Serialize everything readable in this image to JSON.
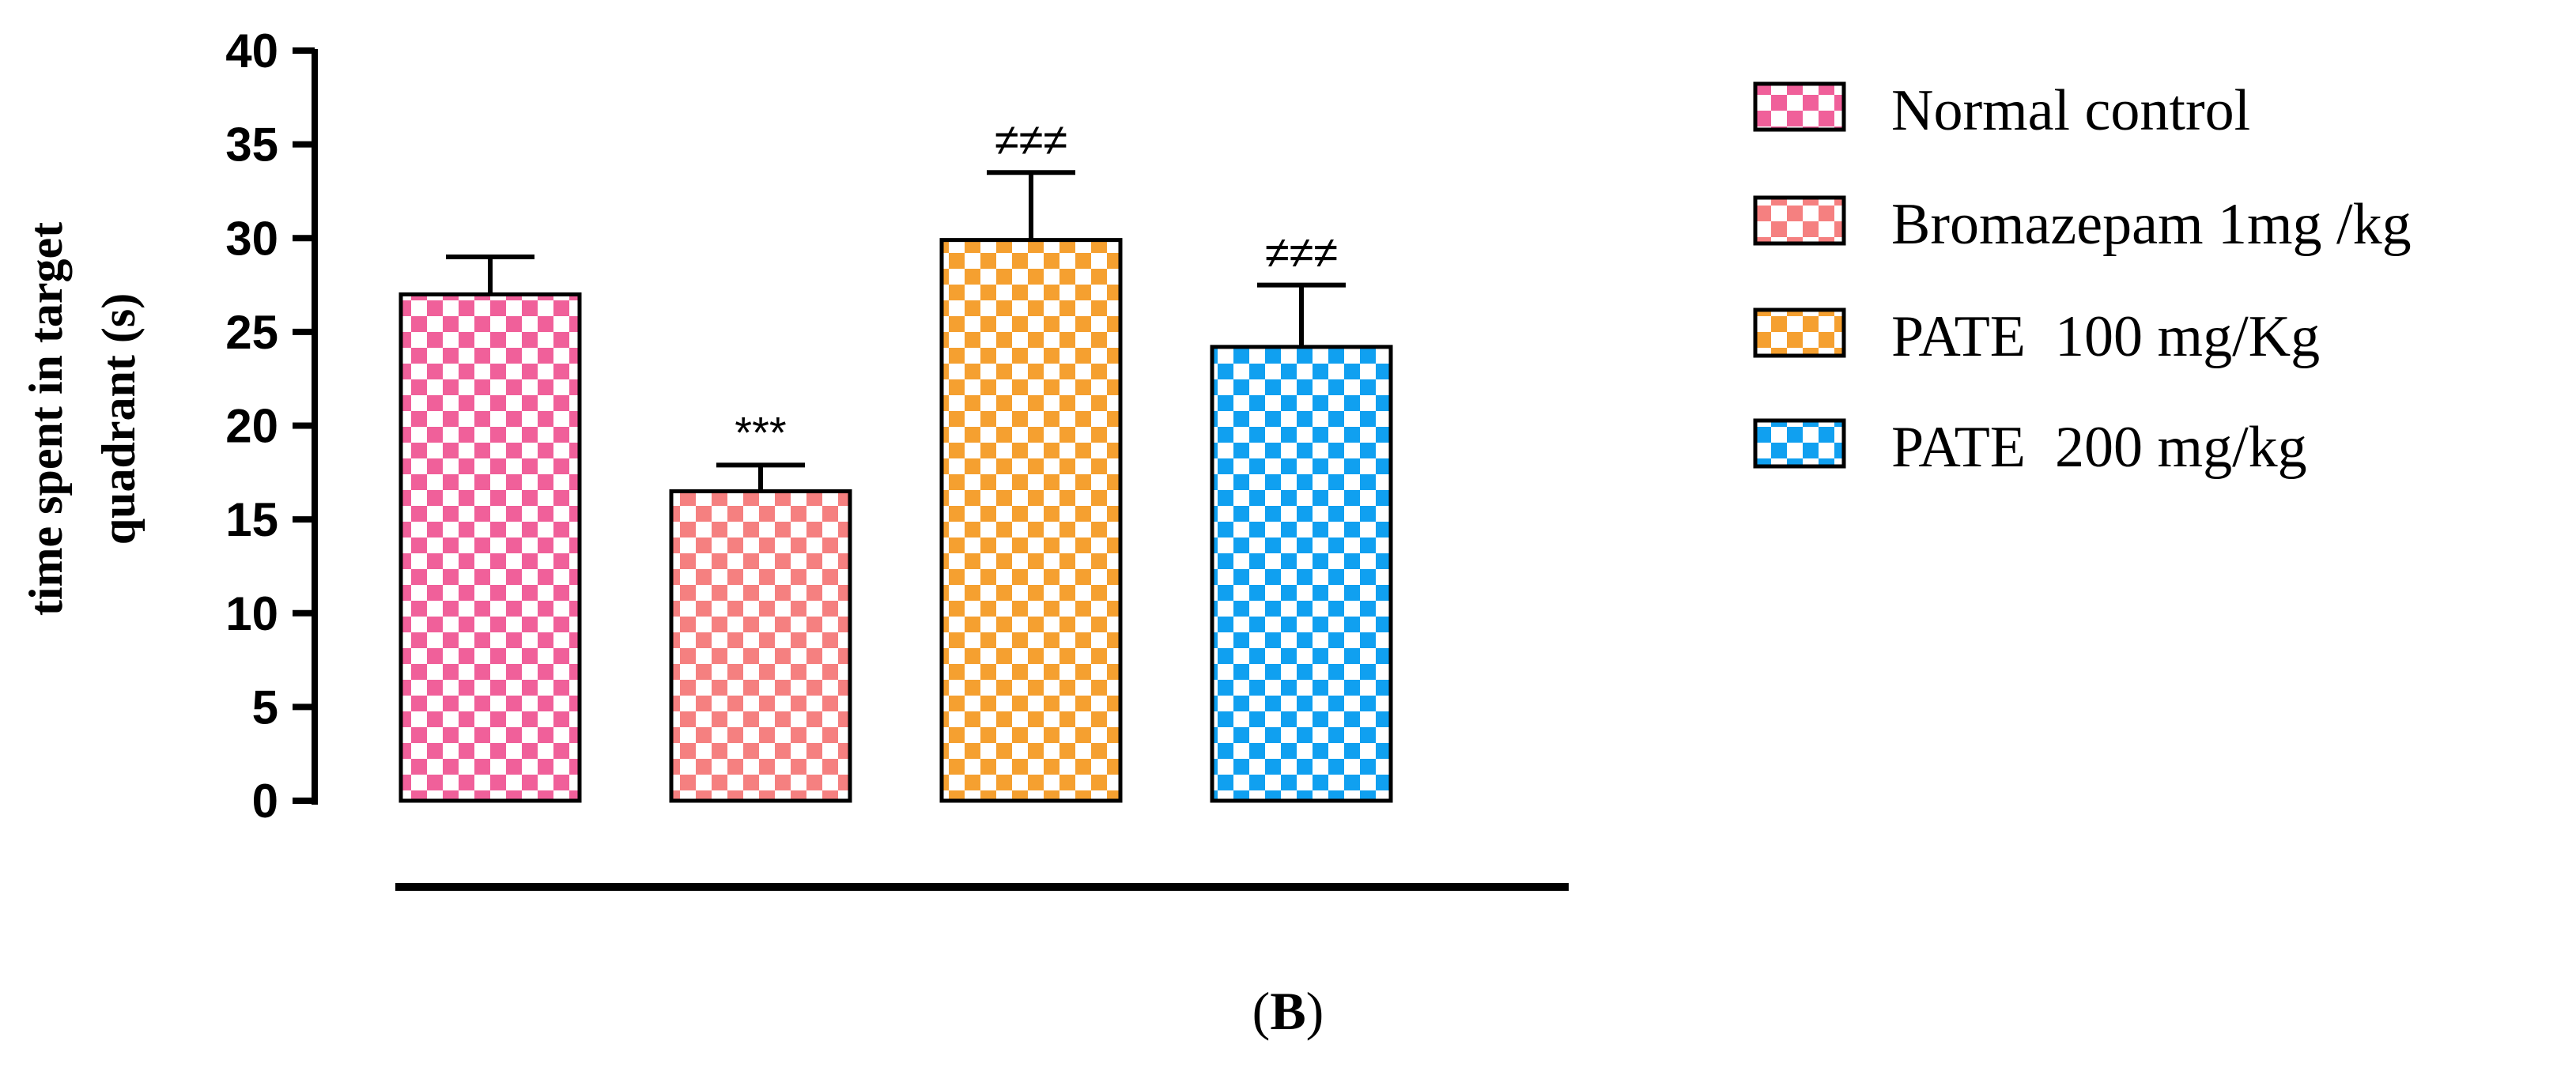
{
  "chart_data": {
    "type": "bar",
    "categories": [
      "Normal control",
      "Bromazepam 1mg /kg",
      "PATE  100 mg/Kg",
      "PATE  200 mg/kg"
    ],
    "values": [
      27.0,
      16.5,
      29.9,
      24.2
    ],
    "errors": [
      2.0,
      1.4,
      3.6,
      3.3
    ],
    "annotations": [
      "",
      "***",
      "≠≠≠",
      "≠≠≠"
    ],
    "colors": [
      "#f0609a",
      "#f58080",
      "#f5a030",
      "#10a0f0"
    ],
    "ylabel_line1": "time spent in target",
    "ylabel_line2": "quadrant (s)",
    "xlabel": "",
    "ylim": [
      0,
      40
    ],
    "yticks": [
      "0",
      "5",
      "10",
      "15",
      "20",
      "25",
      "30",
      "35",
      "40"
    ],
    "legend_position": "right",
    "grid": false
  },
  "panel_label": "B"
}
